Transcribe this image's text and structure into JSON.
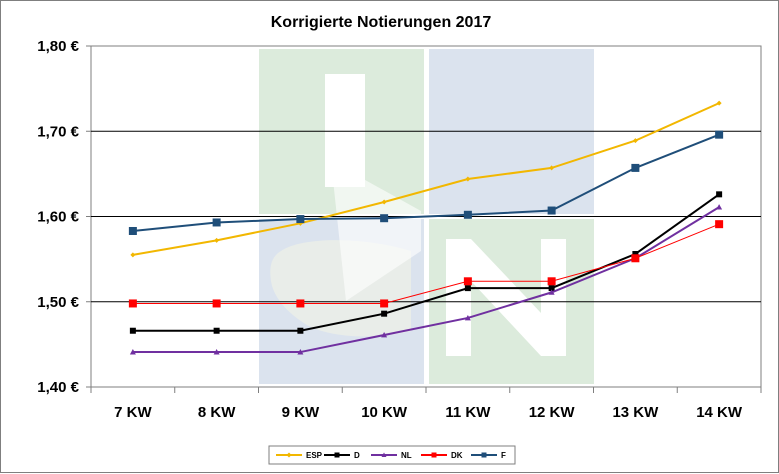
{
  "chart_data": {
    "type": "line",
    "title": "Korrigierte Notierungen 2017",
    "categories": [
      "7 KW",
      "8 KW",
      "9 KW",
      "10 KW",
      "11 KW",
      "12 KW",
      "13 KW",
      "14 KW"
    ],
    "ylim": [
      1.4,
      1.8
    ],
    "yticks": [
      1.4,
      1.5,
      1.6,
      1.7,
      1.8
    ],
    "ytick_labels": [
      "1,40 €",
      "1,50 €",
      "1,60 €",
      "1,70 €",
      "1,80 €"
    ],
    "grid": true,
    "legend_position": "bottom",
    "series": [
      {
        "name": "ESP",
        "color": "#f2b700",
        "marker": "diamond",
        "values": [
          1.555,
          1.572,
          1.592,
          1.617,
          1.644,
          1.657,
          1.689,
          1.733
        ]
      },
      {
        "name": "D",
        "color": "#000000",
        "marker": "square",
        "values": [
          1.466,
          1.466,
          1.466,
          1.486,
          1.516,
          1.516,
          1.556,
          1.626
        ]
      },
      {
        "name": "NL",
        "color": "#7030a0",
        "marker": "triangle",
        "values": [
          1.441,
          1.441,
          1.441,
          1.461,
          1.481,
          1.511,
          1.551,
          1.611
        ]
      },
      {
        "name": "DK",
        "color": "#ff0000",
        "marker": "square",
        "values": [
          1.498,
          1.498,
          1.498,
          1.498,
          1.524,
          1.524,
          1.551,
          1.591
        ]
      },
      {
        "name": "F",
        "color": "#1f4e79",
        "marker": "square",
        "values": [
          1.583,
          1.593,
          1.597,
          1.598,
          1.602,
          1.607,
          1.657,
          1.696
        ]
      }
    ]
  }
}
